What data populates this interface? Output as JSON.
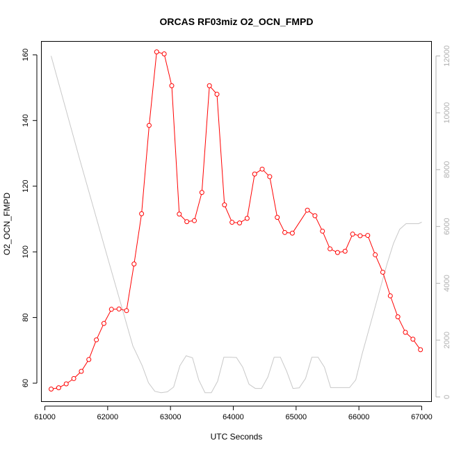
{
  "chart_data": {
    "type": "line",
    "title": "ORCAS RF03miz O2_OCN_FMPD",
    "xlabel": "UTC Seconds",
    "ylabel": "O2_OCN_FMPD",
    "xlim": [
      60950,
      67150
    ],
    "ylim": [
      54.5,
      164
    ],
    "y2lim": [
      -150,
      12500
    ],
    "x_ticks": [
      61000,
      62000,
      63000,
      64000,
      65000,
      66000,
      67000
    ],
    "y_ticks": [
      60,
      80,
      100,
      120,
      140,
      160
    ],
    "y2_ticks": [
      0,
      2000,
      4000,
      6000,
      8000,
      10000,
      12000
    ],
    "series": [
      {
        "axis": "left",
        "color": "#ff0000",
        "style": "line+open-circles",
        "x": [
          61100,
          61220,
          61340,
          61460,
          61580,
          61700,
          61820,
          61940,
          62060,
          62180,
          62300,
          62420,
          62540,
          62660,
          62780,
          62900,
          63020,
          63140,
          63260,
          63380,
          63500,
          63620,
          63740,
          63860,
          63980,
          64100,
          64220,
          64340,
          64460,
          64580,
          64700,
          64820,
          64940,
          65180,
          65300,
          65420,
          65540,
          65660,
          65780,
          65900,
          66020,
          66140,
          66260,
          66380,
          66500,
          66620,
          66740,
          66860,
          66980
        ],
        "y": [
          58.2,
          58.6,
          59.8,
          61.4,
          63.6,
          67.2,
          73.2,
          78.2,
          82.5,
          82.6,
          82.1,
          96.3,
          111.6,
          138.5,
          160.9,
          160.3,
          150.6,
          111.5,
          109.2,
          109.5,
          118.1,
          150.6,
          148.0,
          114.3,
          109.0,
          108.8,
          110.2,
          123.7,
          125.2,
          122.9,
          110.5,
          105.9,
          105.7,
          112.7,
          111.0,
          106.3,
          100.9,
          99.8,
          100.2,
          105.4,
          104.9,
          105.0,
          99.1,
          93.8,
          86.6,
          80.2,
          75.5,
          73.4,
          70.2
        ]
      },
      {
        "axis": "right",
        "color": "#c8c8c8",
        "style": "line",
        "x": [
          61100,
          61550,
          62000,
          62400,
          62550,
          62650,
          62750,
          62850,
          62950,
          63050,
          63150,
          63250,
          63350,
          63450,
          63550,
          63650,
          63750,
          63850,
          63950,
          64050,
          64150,
          64250,
          64350,
          64450,
          64550,
          64650,
          64750,
          64850,
          64950,
          65050,
          65150,
          65250,
          65350,
          65450,
          65550,
          65650,
          65750,
          65850,
          65950,
          66050,
          66150,
          66250,
          66350,
          66450,
          66550,
          66650,
          66750,
          66850,
          66950,
          67000
        ],
        "y": [
          12000,
          8400,
          4900,
          1800,
          1100,
          500,
          200,
          150,
          180,
          350,
          1100,
          1450,
          1380,
          600,
          150,
          150,
          550,
          1400,
          1400,
          1390,
          1050,
          450,
          300,
          300,
          700,
          1400,
          1400,
          900,
          300,
          320,
          650,
          1400,
          1400,
          1050,
          330,
          330,
          330,
          330,
          600,
          1500,
          2300,
          3100,
          3900,
          4700,
          5400,
          5900,
          6100,
          6100,
          6100,
          6150
        ]
      }
    ]
  }
}
